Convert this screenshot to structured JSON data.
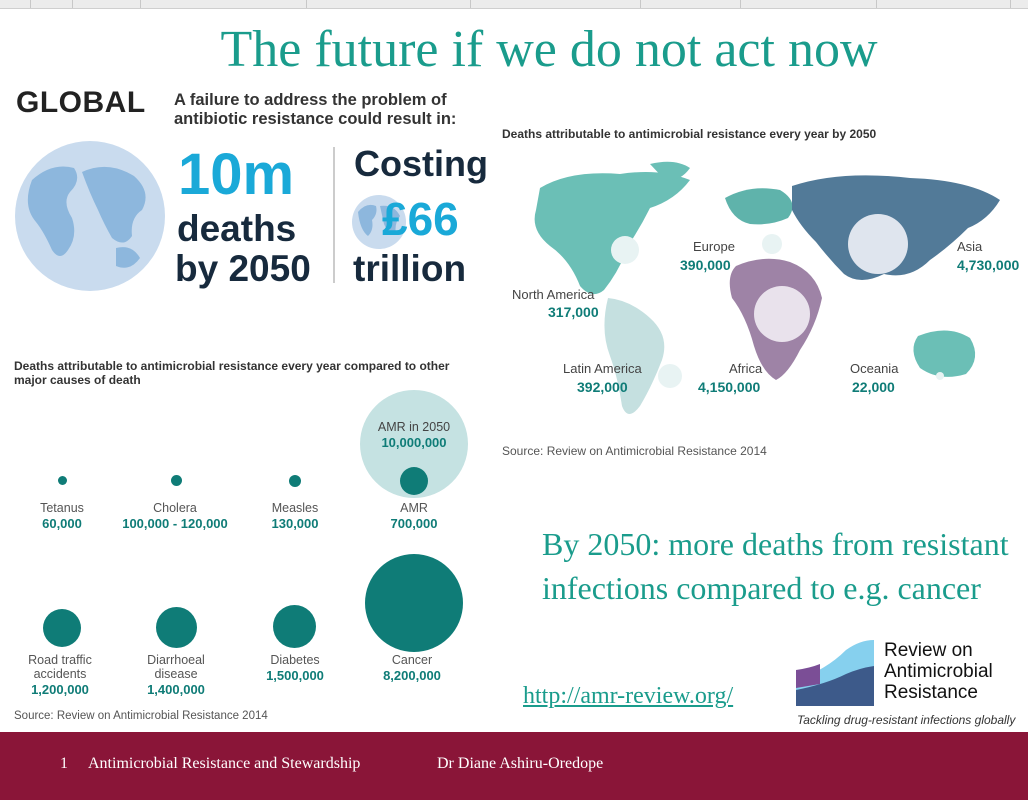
{
  "slide": {
    "title": "The future if we do not act now",
    "side_text": "By 2050: more deaths from resistant infections compared to e.g. cancer",
    "link": "http://amr-review.org/"
  },
  "global_panel": {
    "heading": "GLOBAL",
    "intro": "A failure to address the problem of antibiotic resistance could result in:",
    "deaths_big": "10m",
    "deaths_line2": "deaths",
    "deaths_line3": "by 2050",
    "cost_line1": "Costing",
    "cost_big": "£66",
    "cost_line3": "trillion"
  },
  "comparison_panel": {
    "heading": "Deaths attributable to antimicrobial resistance every year compared to other major causes of death",
    "amr_2050_label": "AMR in 2050",
    "amr_2050_value": "10,000,000",
    "causes": [
      {
        "label": "Tetanus",
        "value": "60,000",
        "deaths": 60000
      },
      {
        "label": "Cholera",
        "value": "100,000 - 120,000",
        "deaths": 110000
      },
      {
        "label": "Measles",
        "value": "130,000",
        "deaths": 130000
      },
      {
        "label": "AMR",
        "value": "700,000",
        "deaths": 700000
      },
      {
        "label": "Road traffic accidents",
        "value": "1,200,000",
        "deaths": 1200000
      },
      {
        "label": "Diarrhoeal disease",
        "value": "1,400,000",
        "deaths": 1400000
      },
      {
        "label": "Diabetes",
        "value": "1,500,000",
        "deaths": 1500000
      },
      {
        "label": "Cancer",
        "value": "8,200,000",
        "deaths": 8200000
      }
    ],
    "source": "Source: Review on Antimicrobial Resistance 2014"
  },
  "map_panel": {
    "heading": "Deaths attributable to antimicrobial resistance every year by 2050",
    "regions": [
      {
        "name": "North America",
        "value": "317,000"
      },
      {
        "name": "Europe",
        "value": "390,000"
      },
      {
        "name": "Asia",
        "value": "4,730,000"
      },
      {
        "name": "Latin America",
        "value": "392,000"
      },
      {
        "name": "Africa",
        "value": "4,150,000"
      },
      {
        "name": "Oceania",
        "value": "22,000"
      }
    ],
    "source": "Source: Review on Antimicrobial Resistance 2014"
  },
  "logo": {
    "line1": "Review on",
    "line2": "Antimicrobial",
    "line3": "Resistance",
    "tagline": "Tackling drug-resistant infections globally"
  },
  "footer": {
    "slide_number": "1",
    "course": "Antimicrobial Resistance and Stewardship",
    "author": "Dr Diane Ashiru-Oredope"
  },
  "colors": {
    "title_teal": "#1a9c8c",
    "bubble_teal": "#0f7c77",
    "footer_maroon": "#8a1538",
    "stat_blue": "#1aa9d8",
    "stat_navy": "#172a3d"
  }
}
